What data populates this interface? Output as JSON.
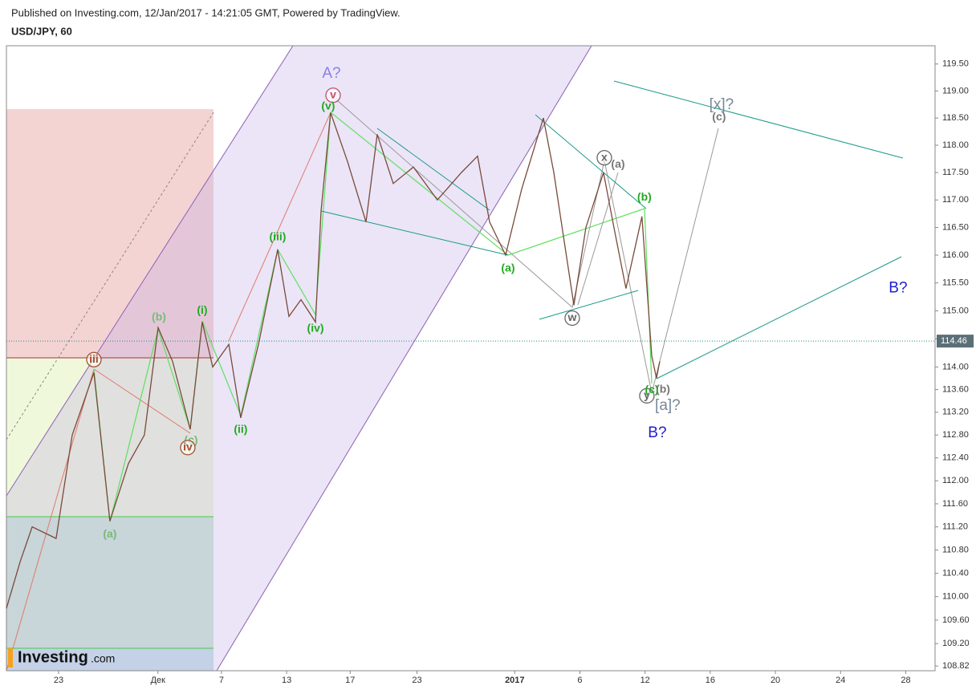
{
  "header": {
    "published": "Published on Investing.com, 12/Jan/2017 - 14:21:05 GMT, Powered by TradingView.",
    "symbol": "USD/JPY, 60"
  },
  "logo": {
    "name": "Investing",
    "suffix": ".com"
  },
  "chart_data": {
    "type": "line",
    "log_scale": true,
    "color": "#7a4a3a",
    "x": [
      0,
      0.84,
      1.58,
      3.05,
      4.04,
      5.37,
      6.35,
      7.49,
      8.47,
      9.31,
      10.2,
      11.28,
      12.02,
      12.66,
      13.65,
      14.38,
      15.47,
      16.65,
      17.34,
      18.08,
      18.97,
      19.31,
      19.9,
      20.94,
      22.07,
      22.76,
      23.74,
      24.98,
      26.45,
      27.93,
      28.92,
      29.66,
      30.64,
      31.63,
      32.96,
      33.6,
      34.83,
      35.57,
      36.65,
      37.29,
      38.03,
      39.01,
      39.61,
      39.9,
      40.1
    ],
    "values": [
      109.8,
      110.6,
      111.2,
      111.0,
      112.8,
      113.9,
      111.3,
      112.3,
      112.8,
      114.7,
      114.1,
      112.9,
      114.8,
      114.0,
      114.4,
      113.1,
      114.4,
      116.1,
      114.9,
      115.2,
      114.8,
      116.8,
      118.6,
      117.7,
      116.6,
      118.2,
      117.3,
      117.6,
      117.0,
      117.5,
      117.8,
      116.6,
      116.0,
      117.2,
      118.5,
      117.5,
      115.1,
      116.5,
      117.5,
      116.5,
      115.4,
      116.7,
      114.2,
      113.8,
      114.1
    ],
    "last_price": 114.46,
    "xlim": [
      0,
      57
    ],
    "xticks": [
      {
        "value": 3.2,
        "label": "23"
      },
      {
        "value": 9.3,
        "label": "Дек"
      },
      {
        "value": 13.2,
        "label": "7"
      },
      {
        "value": 17.2,
        "label": "13"
      },
      {
        "value": 21.1,
        "label": "17"
      },
      {
        "value": 25.2,
        "label": "23"
      },
      {
        "value": 31.2,
        "label": "2017"
      },
      {
        "value": 35.2,
        "label": "6"
      },
      {
        "value": 39.2,
        "label": "12"
      },
      {
        "value": 43.2,
        "label": "16"
      },
      {
        "value": 47.2,
        "label": "20"
      },
      {
        "value": 51.2,
        "label": "24"
      },
      {
        "value": 55.2,
        "label": "28"
      }
    ],
    "ylim": [
      108.74,
      119.84
    ],
    "yticks": [
      108.82,
      {
        "value": 109.2,
        "label": "109.20"
      },
      {
        "value": 109.6,
        "label": "109.60"
      },
      {
        "value": 110,
        "label": "110.00"
      },
      {
        "value": 110.4,
        "label": "110.40"
      },
      {
        "value": 110.8,
        "label": "110.80"
      },
      {
        "value": 111.2,
        "label": "111.20"
      },
      {
        "value": 111.6,
        "label": "111.60"
      },
      {
        "value": 112,
        "label": "112.00"
      },
      {
        "value": 112.4,
        "label": "112.40"
      },
      {
        "value": 112.8,
        "label": "112.80"
      },
      {
        "value": 113.2,
        "label": "113.20"
      },
      {
        "value": 113.6,
        "label": "113.60"
      },
      {
        "value": 114,
        "label": "114.00"
      },
      {
        "value": 114.5,
        "label": "114.50"
      },
      {
        "value": 115,
        "label": "115.00"
      },
      {
        "value": 115.5,
        "label": "115.50"
      },
      {
        "value": 116,
        "label": "116.00"
      },
      {
        "value": 116.5,
        "label": "116.50"
      },
      {
        "value": 117,
        "label": "117.00"
      },
      {
        "value": 117.5,
        "label": "117.50"
      },
      {
        "value": 118,
        "label": "118.00"
      },
      {
        "value": 118.5,
        "label": "118.50"
      },
      {
        "value": 119,
        "label": "119.00"
      },
      {
        "value": 119.5,
        "label": "119.50"
      }
    ],
    "annotations": [
      {
        "text": "A?",
        "x": 19.95,
        "y": 119.32,
        "color": "#8a7fe8",
        "circled": false
      },
      {
        "text": "v",
        "x": 20.05,
        "y": 118.92,
        "color": "#c0506a",
        "circled": true
      },
      {
        "text": "(v)",
        "x": 19.75,
        "y": 118.71,
        "color": "#22aa22",
        "circled": false
      },
      {
        "text": "(iii)",
        "x": 16.65,
        "y": 116.32,
        "color": "#22aa22",
        "circled": false
      },
      {
        "text": "(iv)",
        "x": 18.97,
        "y": 114.68,
        "color": "#22aa22",
        "circled": false
      },
      {
        "text": "(ii)",
        "x": 14.38,
        "y": 112.89,
        "color": "#22aa22",
        "circled": false
      },
      {
        "text": "(i)",
        "x": 12.02,
        "y": 115.0,
        "color": "#22aa22",
        "circled": false
      },
      {
        "text": "(b)",
        "x": 9.36,
        "y": 114.88,
        "color": "#77bb77",
        "circled": false
      },
      {
        "text": "(a)",
        "x": 6.35,
        "y": 111.07,
        "color": "#77bb77",
        "circled": false
      },
      {
        "text": "iii",
        "x": 5.37,
        "y": 114.13,
        "color": "#a0522d",
        "circled": true
      },
      {
        "text": "(c)",
        "x": 11.33,
        "y": 112.7,
        "color": "#77bb77",
        "circled": false
      },
      {
        "text": "iv",
        "x": 11.13,
        "y": 112.58,
        "color": "#a0522d",
        "circled": true
      },
      {
        "text": "(a)",
        "x": 30.79,
        "y": 115.76,
        "color": "#22aa22",
        "circled": false
      },
      {
        "text": "(b)",
        "x": 39.16,
        "y": 117.04,
        "color": "#22aa22",
        "circled": false
      },
      {
        "text": "w",
        "x": 34.73,
        "y": 114.87,
        "color": "#666666",
        "circled": true
      },
      {
        "text": "x",
        "x": 36.7,
        "y": 117.77,
        "color": "#666666",
        "circled": true
      },
      {
        "text": "(a)",
        "x": 37.54,
        "y": 117.64,
        "color": "#777777",
        "circled": false
      },
      {
        "text": "[x]?",
        "x": 43.89,
        "y": 118.74,
        "color": "#778899",
        "circled": false
      },
      {
        "text": "(c)",
        "x": 43.74,
        "y": 118.51,
        "color": "#777777",
        "circled": false
      },
      {
        "text": "y",
        "x": 39.31,
        "y": 113.49,
        "color": "#666666",
        "circled": true
      },
      {
        "text": "(c)",
        "x": 39.61,
        "y": 113.59,
        "color": "#22aa22",
        "circled": false
      },
      {
        "text": "(b)",
        "x": 40.3,
        "y": 113.6,
        "color": "#777777",
        "circled": false
      },
      {
        "text": "[a]?",
        "x": 40.59,
        "y": 113.31,
        "color": "#778899",
        "circled": false
      },
      {
        "text": "B?",
        "x": 39.95,
        "y": 112.83,
        "color": "#1f1fd0",
        "circled": false
      },
      {
        "text": "B?",
        "x": 54.73,
        "y": 115.4,
        "color": "#1f1fd0",
        "circled": false
      }
    ]
  }
}
